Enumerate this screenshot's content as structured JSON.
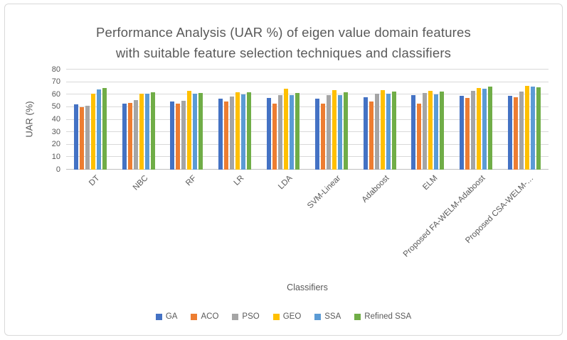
{
  "chart_data": {
    "type": "bar",
    "title_lines": [
      "Performance Analysis (UAR %) of eigen value domain features",
      "with suitable feature selection techniques and classifiers"
    ],
    "xlabel": "Classifiers",
    "ylabel": "UAR (%)",
    "ylim": [
      0,
      80
    ],
    "ytick_step": 10,
    "grid": true,
    "legend_position": "bottom",
    "categories": [
      "DT",
      "NBC",
      "RF",
      "LR",
      "LDA",
      "SVM-Linear",
      "Adaboost",
      "ELM",
      "Proposed FA-WELM-Adaboost",
      "Proposed CSA-WELM-…"
    ],
    "series": [
      {
        "name": "GA",
        "color": "#4472C4",
        "values": [
          52,
          52.5,
          54.5,
          57,
          57.5,
          57,
          58,
          59.5,
          59,
          59
        ]
      },
      {
        "name": "ACO",
        "color": "#ED7D31",
        "values": [
          50,
          53.5,
          53,
          54.5,
          53,
          53,
          54.5,
          53,
          57.5,
          58
        ]
      },
      {
        "name": "PSO",
        "color": "#A5A5A5",
        "values": [
          51,
          55.5,
          55,
          58.5,
          59.5,
          59.5,
          61,
          61.5,
          63,
          62.5
        ]
      },
      {
        "name": "GEO",
        "color": "#FFC000",
        "values": [
          60.5,
          60.5,
          63,
          62,
          64.5,
          63.5,
          63.5,
          63,
          65.5,
          67
        ]
      },
      {
        "name": "SSA",
        "color": "#5B9BD5",
        "values": [
          64,
          61,
          60.5,
          60,
          59.5,
          59.5,
          60.5,
          60,
          64.5,
          66.5
        ]
      },
      {
        "name": "Refined SSA",
        "color": "#70AD47",
        "values": [
          65.5,
          62,
          61.5,
          62,
          61.5,
          62,
          62.5,
          62.5,
          66.5,
          66
        ]
      }
    ],
    "colors": {
      "text": "#595959",
      "gridline": "#D9D9D9",
      "axis_line": "#BFBFBF",
      "frame_border": "#D9D9D9"
    }
  }
}
